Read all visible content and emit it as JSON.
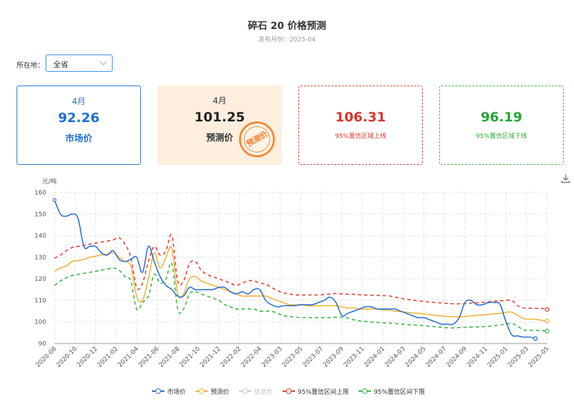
{
  "page": {
    "title": "碎石 20 价格预测",
    "subtitle": "发布月份：2025-04",
    "location_label": "所在地：",
    "location_value": "全省"
  },
  "cards": [
    {
      "month": "4月",
      "value": "92.26",
      "label": "市场价"
    },
    {
      "month": "4月",
      "value": "101.25",
      "label": "预测价",
      "stamp": "预测价"
    },
    {
      "value": "106.31",
      "label": "95%置信区域上线"
    },
    {
      "value": "96.19",
      "label": "95%置信区域下线"
    }
  ],
  "colors": {
    "market": "#2c6fd6",
    "forecast": "#f0b43c",
    "info": "#cccccc",
    "upper": "#d8443a",
    "lower": "#3cb547"
  },
  "chart_data": {
    "type": "line",
    "ylabel": "元/吨",
    "ylim": [
      90,
      160
    ],
    "yticks": [
      90,
      100,
      110,
      120,
      130,
      140,
      150,
      160
    ],
    "grid": true,
    "legend_position": "bottom",
    "xlabels": [
      "2020-08",
      "2020-10",
      "2020-12",
      "2021-02",
      "2021-04",
      "2021-06",
      "2021-08",
      "2021-10",
      "2021-12",
      "2022-02",
      "2022-04",
      "2023-03",
      "2023-05",
      "2023-07",
      "2023-09",
      "2023-11",
      "2024-01",
      "2024-03",
      "2024-05",
      "2024-07",
      "2024-09",
      "2024-11",
      "2025-01",
      "2025-03",
      "2025-05"
    ],
    "series": [
      {
        "name": "市场价",
        "key": "market",
        "values": [
          156.5,
          150,
          149,
          150,
          148,
          135,
          135,
          135,
          132,
          131,
          133,
          129,
          128,
          129,
          130,
          123,
          135,
          128,
          121,
          117,
          115,
          112,
          112,
          116,
          115,
          115,
          115,
          115,
          116,
          116,
          114,
          113,
          114,
          113,
          115,
          115,
          110,
          108,
          107,
          107.5,
          107.5,
          107.5,
          108,
          108,
          108,
          109,
          110,
          111.5,
          109,
          103,
          104,
          105,
          106,
          107,
          107,
          106,
          106,
          106,
          106,
          105,
          104,
          103,
          102,
          102,
          101,
          100,
          99,
          99,
          99,
          102,
          109,
          110,
          108,
          108,
          109,
          109,
          108,
          100,
          94,
          93.5,
          93,
          93,
          92.3,
          null,
          null
        ]
      },
      {
        "name": "预测价",
        "key": "forecast",
        "values": [
          123.5,
          125,
          126,
          128,
          128.5,
          129,
          130,
          130.5,
          131,
          131.5,
          132,
          130,
          128,
          126,
          112,
          110,
          120,
          132,
          125,
          130,
          134,
          113,
          113,
          120,
          121,
          119,
          118,
          117,
          116,
          115,
          114,
          113,
          112,
          112,
          112,
          112,
          112,
          111,
          110,
          109,
          108,
          108,
          108,
          107.5,
          107.5,
          107.5,
          107.5,
          107.5,
          107.5,
          107,
          106.5,
          106.5,
          106,
          106,
          106,
          106,
          105.5,
          105.5,
          105,
          104.8,
          104.5,
          104.2,
          104,
          103.7,
          103.4,
          103,
          102.8,
          102.5,
          102.5,
          102.3,
          102.5,
          102.8,
          103,
          103.2,
          103.5,
          103.8,
          104,
          104.5,
          104.5,
          103,
          101.5,
          101.3,
          101.2,
          100.8,
          100.5
        ]
      },
      {
        "name": "信息价",
        "key": "info",
        "values": []
      },
      {
        "name": "95%置信区间上限",
        "key": "upper",
        "values": [
          129.5,
          131,
          133,
          134.5,
          135,
          135.5,
          136,
          136.5,
          137,
          137.5,
          138,
          139,
          136,
          130,
          116,
          118,
          128,
          135,
          131,
          133,
          140,
          119,
          119,
          127,
          128,
          124,
          122,
          121,
          120,
          119,
          118,
          117,
          118,
          119,
          119,
          118,
          117.5,
          116,
          114.5,
          113.5,
          113,
          112.5,
          112.5,
          112.5,
          112.5,
          112.5,
          112.7,
          113,
          113.2,
          113,
          112.8,
          112.8,
          112.6,
          112.5,
          112.4,
          112.3,
          112.2,
          112.1,
          111.5,
          111,
          110.5,
          110.2,
          109.8,
          109.5,
          109.2,
          109,
          108.8,
          108.6,
          108.4,
          108.4,
          108.5,
          108.7,
          108.9,
          109.1,
          109.3,
          109.6,
          109.8,
          110,
          110,
          107.5,
          106.5,
          106.4,
          106.3,
          106.3,
          105.8
        ]
      },
      {
        "name": "95%置信区间下限",
        "key": "lower",
        "values": [
          117,
          119,
          120.5,
          121.5,
          122,
          122.5,
          123,
          123.5,
          124,
          124.5,
          125,
          124,
          121,
          119,
          106,
          109,
          112,
          122,
          118,
          120,
          127,
          106,
          106,
          113,
          114,
          113,
          112,
          111,
          110,
          108,
          107,
          106,
          106,
          106,
          106,
          105,
          105,
          105,
          104,
          103,
          102.5,
          102.2,
          102,
          102,
          102,
          102,
          102,
          102,
          102.2,
          102.2,
          101.8,
          101,
          100.5,
          100.2,
          100,
          99.8,
          99.6,
          99.5,
          99.3,
          99,
          98.8,
          98.6,
          98.5,
          98.3,
          98,
          97.8,
          97.5,
          97.3,
          97.2,
          97.4,
          97.5,
          97.6,
          97.7,
          97.8,
          98,
          98.3,
          98.6,
          99,
          99.2,
          98,
          96.3,
          96.2,
          96.1,
          96,
          95.8
        ]
      }
    ]
  },
  "icons": {
    "download": "download-icon"
  }
}
